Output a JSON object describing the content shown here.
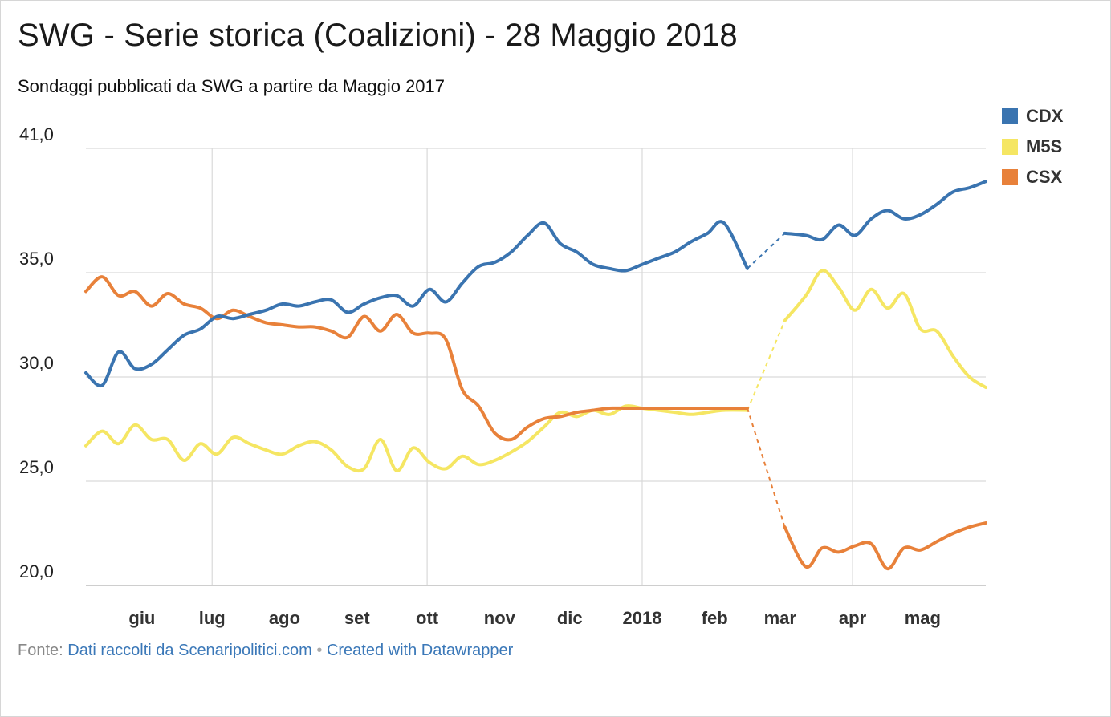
{
  "title": "SWG - Serie storica (Coalizioni) - 28 Maggio 2018",
  "subtitle": "Sondaggi pubblicati da SWG a partire da Maggio 2017",
  "footer": {
    "prefix": "Fonte: ",
    "source_link": "Dati raccolti da Scenaripolitici.com",
    "separator": " • ",
    "created_link": "Created with Datawrapper"
  },
  "legend": [
    {
      "name": "CDX",
      "color": "#3a74b0"
    },
    {
      "name": "M5S",
      "color": "#f5e663"
    },
    {
      "name": "CSX",
      "color": "#e8813a"
    }
  ],
  "chart_data": {
    "type": "line",
    "title": "SWG - Serie storica (Coalizioni) - 28 Maggio 2018",
    "ylim": [
      20.0,
      41.0
    ],
    "yticks": [
      20.0,
      25.0,
      30.0,
      35.0,
      41.0
    ],
    "ytick_labels": [
      "20,0",
      "25,0",
      "30,0",
      "35,0",
      "41,0"
    ],
    "xlim": [
      "2017-05-08",
      "2018-05-28"
    ],
    "xticks": [
      {
        "label": "giu",
        "date": "2017-06-01"
      },
      {
        "label": "lug",
        "date": "2017-07-01"
      },
      {
        "label": "ago",
        "date": "2017-08-01"
      },
      {
        "label": "set",
        "date": "2017-09-01"
      },
      {
        "label": "ott",
        "date": "2017-10-01"
      },
      {
        "label": "nov",
        "date": "2017-11-01"
      },
      {
        "label": "dic",
        "date": "2017-12-01"
      },
      {
        "label": "2018",
        "date": "2018-01-01"
      },
      {
        "label": "feb",
        "date": "2018-02-01"
      },
      {
        "label": "mar",
        "date": "2018-03-01"
      },
      {
        "label": "apr",
        "date": "2018-04-01"
      },
      {
        "label": "mag",
        "date": "2018-05-01"
      }
    ],
    "gridlines": [
      "2017-07-01",
      "2017-10-01",
      "2018-01-01",
      "2018-04-01"
    ],
    "gap": {
      "start": "2018-02-15",
      "end": "2018-03-03"
    },
    "x": [
      "2017-05-08",
      "2017-05-15",
      "2017-05-22",
      "2017-05-29",
      "2017-06-05",
      "2017-06-12",
      "2017-06-19",
      "2017-06-26",
      "2017-07-03",
      "2017-07-10",
      "2017-07-17",
      "2017-07-24",
      "2017-07-31",
      "2017-08-07",
      "2017-08-14",
      "2017-08-21",
      "2017-08-28",
      "2017-09-04",
      "2017-09-11",
      "2017-09-18",
      "2017-09-25",
      "2017-10-02",
      "2017-10-09",
      "2017-10-16",
      "2017-10-23",
      "2017-10-30",
      "2017-11-06",
      "2017-11-13",
      "2017-11-20",
      "2017-11-27",
      "2017-12-04",
      "2017-12-11",
      "2017-12-18",
      "2017-12-25",
      "2018-01-01",
      "2018-01-08",
      "2018-01-15",
      "2018-01-22",
      "2018-01-29",
      "2018-02-05",
      "2018-02-15",
      "2018-03-03",
      "2018-03-12",
      "2018-03-19",
      "2018-03-26",
      "2018-04-02",
      "2018-04-09",
      "2018-04-16",
      "2018-04-23",
      "2018-04-30",
      "2018-05-07",
      "2018-05-14",
      "2018-05-21",
      "2018-05-28"
    ],
    "series": [
      {
        "name": "CDX",
        "color": "#3a74b0",
        "values": [
          30.2,
          29.6,
          31.2,
          30.4,
          30.6,
          31.3,
          32.0,
          32.3,
          32.9,
          32.8,
          33.0,
          33.2,
          33.5,
          33.4,
          33.6,
          33.7,
          33.1,
          33.5,
          33.8,
          33.9,
          33.4,
          34.2,
          33.6,
          34.5,
          35.3,
          35.5,
          36.0,
          36.8,
          37.4,
          36.4,
          36.0,
          35.4,
          35.2,
          35.1,
          35.4,
          35.7,
          36.0,
          36.5,
          36.9,
          37.4,
          35.2,
          36.9,
          36.8,
          36.6,
          37.3,
          36.8,
          37.6,
          38.0,
          37.6,
          37.8,
          38.3,
          38.9,
          39.1,
          39.4
        ]
      },
      {
        "name": "M5S",
        "color": "#f5e663",
        "values": [
          26.7,
          27.4,
          26.8,
          27.7,
          27.0,
          27.0,
          26.0,
          26.8,
          26.3,
          27.1,
          26.8,
          26.5,
          26.3,
          26.7,
          26.9,
          26.5,
          25.7,
          25.6,
          27.0,
          25.5,
          26.6,
          25.9,
          25.6,
          26.2,
          25.8,
          26.0,
          26.4,
          26.9,
          27.6,
          28.3,
          28.1,
          28.4,
          28.2,
          28.6,
          28.5,
          28.4,
          28.3,
          28.2,
          28.3,
          28.4,
          28.4,
          32.7,
          33.9,
          35.1,
          34.3,
          33.2,
          34.2,
          33.3,
          34.0,
          32.3,
          32.2,
          31.0,
          30.0,
          29.5
        ]
      },
      {
        "name": "CSX",
        "color": "#e8813a",
        "values": [
          34.1,
          34.8,
          33.9,
          34.1,
          33.4,
          34.0,
          33.5,
          33.3,
          32.8,
          33.2,
          32.9,
          32.6,
          32.5,
          32.4,
          32.4,
          32.2,
          31.9,
          32.9,
          32.2,
          33.0,
          32.1,
          32.1,
          31.8,
          29.4,
          28.6,
          27.3,
          27.0,
          27.6,
          28.0,
          28.1,
          28.3,
          28.4,
          28.5,
          28.5,
          28.5,
          28.5,
          28.5,
          28.5,
          28.5,
          28.5,
          28.5,
          22.8,
          20.9,
          21.8,
          21.6,
          21.9,
          22.0,
          20.8,
          21.8,
          21.7,
          22.1,
          22.5,
          22.8,
          23.0
        ]
      }
    ]
  }
}
